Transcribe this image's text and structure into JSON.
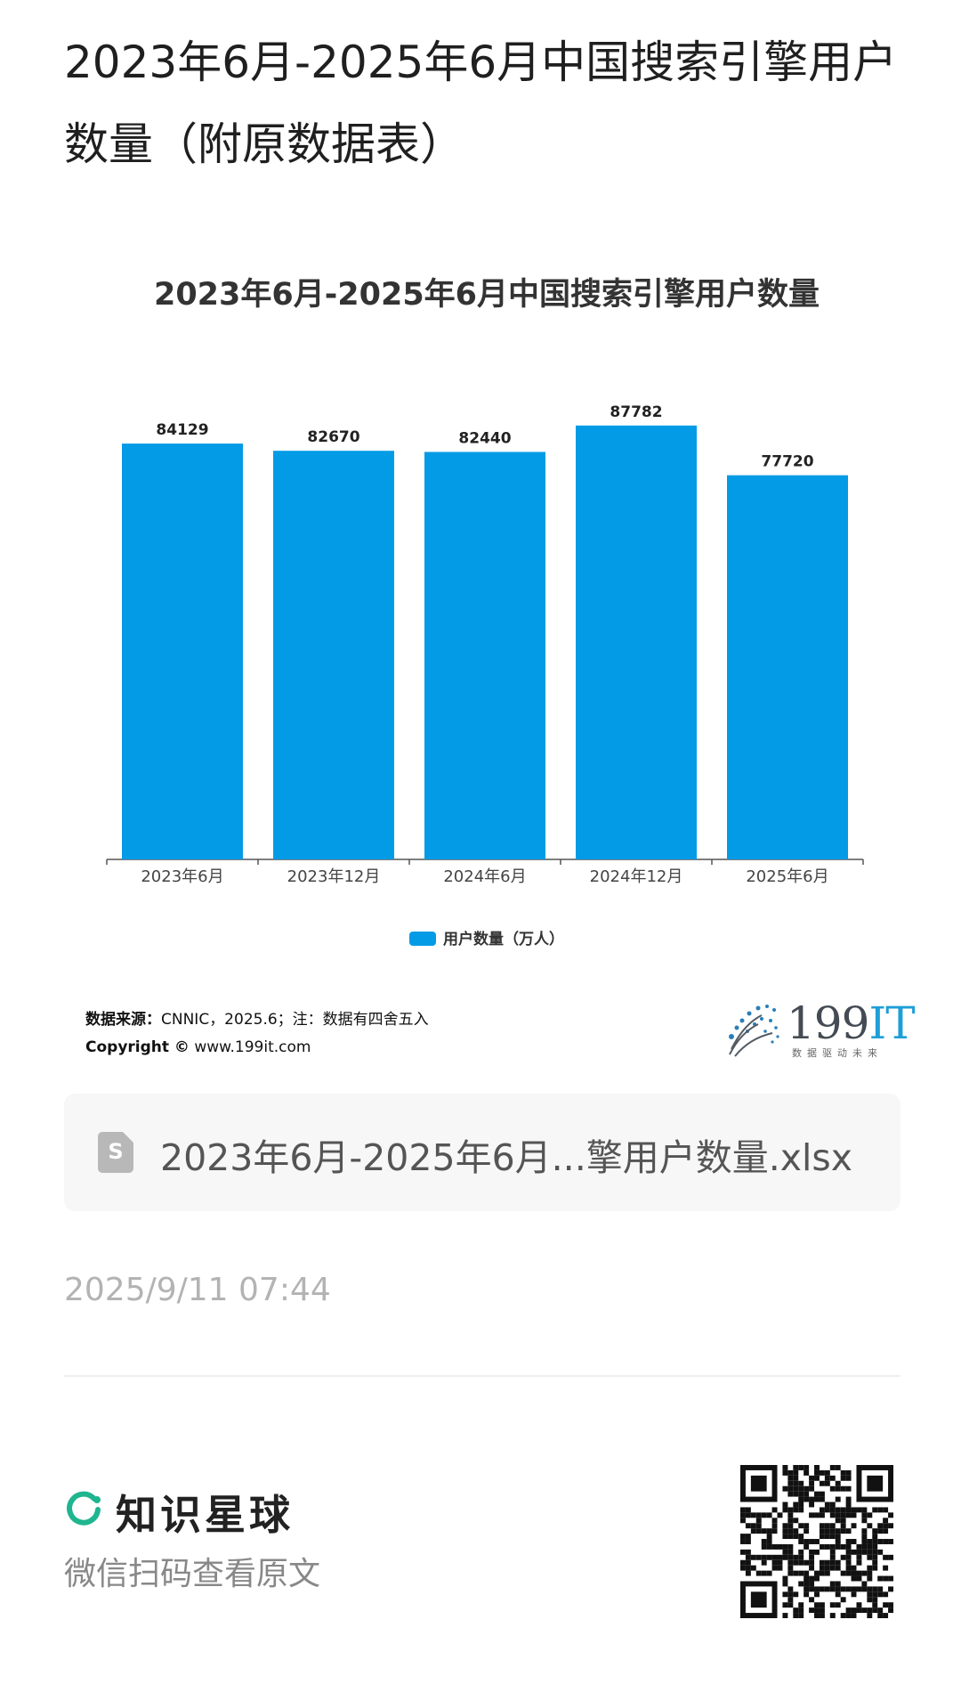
{
  "page": {
    "title": "2023年6月-2025年6月中国搜索引擎用户数量（附原数据表）"
  },
  "chart_data": {
    "type": "bar",
    "title": "2023年6月-2025年6月中国搜索引擎用户数量",
    "categories": [
      "2023年6月",
      "2023年12月",
      "2024年6月",
      "2024年12月",
      "2025年6月"
    ],
    "series": [
      {
        "name": "用户数量（万人）",
        "values": [
          84129,
          82670,
          82440,
          87782,
          77720
        ]
      }
    ],
    "ylim": [
      0,
      100000
    ],
    "grid": false,
    "legend_position": "bottom",
    "bar_color": "#039be5"
  },
  "source": {
    "label": "数据来源：",
    "text": "CNNIC，2025.6；注：数据有四舍五入",
    "copyright_label": "Copyright ©",
    "copyright_site": "www.199it.com"
  },
  "logo": {
    "number": "199",
    "suffix": "IT",
    "tagline": "数据驱动未来"
  },
  "attachment": {
    "icon": "spreadsheet-file-icon",
    "icon_letter": "S",
    "file_name": "2023年6月-2025年6月...擎用户数量.xlsx"
  },
  "timestamp": "2025/9/11 07:44",
  "footer": {
    "brand_name": "知识星球",
    "scan_text": "微信扫码查看原文",
    "brand_color": "#1fb58f",
    "qr_icon": "qr-code-icon"
  }
}
